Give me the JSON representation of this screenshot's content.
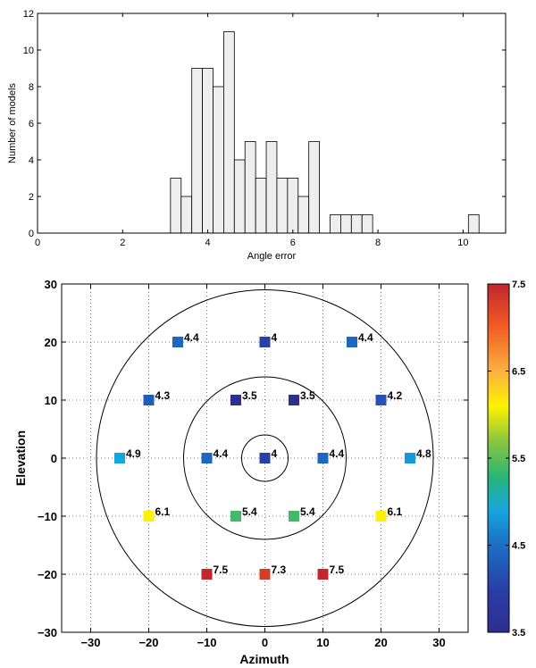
{
  "chart_data": [
    {
      "type": "bar",
      "xlabel": "Angle error",
      "ylabel": "Number of models",
      "xlim": [
        0,
        11
      ],
      "ylim": [
        0,
        12
      ],
      "xticks": [
        "0",
        "2",
        "4",
        "6",
        "8",
        "10"
      ],
      "yticks": [
        "0",
        "2",
        "4",
        "6",
        "8",
        "10",
        "12"
      ],
      "bin_width": 0.25,
      "bar_fill": "#eeeeee",
      "bins": [
        {
          "x": 3.25,
          "count": 3
        },
        {
          "x": 3.5,
          "count": 2
        },
        {
          "x": 3.75,
          "count": 9
        },
        {
          "x": 4.0,
          "count": 9
        },
        {
          "x": 4.25,
          "count": 8
        },
        {
          "x": 4.5,
          "count": 11
        },
        {
          "x": 4.75,
          "count": 4
        },
        {
          "x": 5.0,
          "count": 5
        },
        {
          "x": 5.25,
          "count": 3
        },
        {
          "x": 5.5,
          "count": 5
        },
        {
          "x": 5.75,
          "count": 3
        },
        {
          "x": 6.0,
          "count": 3
        },
        {
          "x": 6.25,
          "count": 2
        },
        {
          "x": 6.5,
          "count": 5
        },
        {
          "x": 7.0,
          "count": 1
        },
        {
          "x": 7.25,
          "count": 1
        },
        {
          "x": 7.5,
          "count": 1
        },
        {
          "x": 7.75,
          "count": 1
        },
        {
          "x": 10.25,
          "count": 1
        }
      ]
    },
    {
      "type": "scatter",
      "xlabel": "Azimuth",
      "ylabel": "Elevation",
      "xlim": [
        -35,
        35
      ],
      "ylim": [
        -30,
        30
      ],
      "xticks": [
        "−30",
        "−20",
        "−10",
        "0",
        "10",
        "20",
        "30"
      ],
      "yticks": [
        "30",
        "20",
        "10",
        "0",
        "−10",
        "−20",
        "−30"
      ],
      "grid": true,
      "grid_style": "dotted",
      "circles": [
        {
          "cx": 0,
          "cy": 0,
          "r": 4
        },
        {
          "cx": 0,
          "cy": 0,
          "r": 14
        },
        {
          "cx": 0,
          "cy": 0,
          "r": 29
        }
      ],
      "points": [
        {
          "x": -15,
          "y": 20,
          "value": 4.4,
          "label": "4.4"
        },
        {
          "x": 0,
          "y": 20,
          "value": 4.0,
          "label": "4"
        },
        {
          "x": 15,
          "y": 20,
          "value": 4.4,
          "label": "4.4"
        },
        {
          "x": -20,
          "y": 10,
          "value": 4.3,
          "label": "4.3"
        },
        {
          "x": -5,
          "y": 10,
          "value": 3.5,
          "label": "3.5"
        },
        {
          "x": 5,
          "y": 10,
          "value": 3.5,
          "label": "3.5"
        },
        {
          "x": 20,
          "y": 10,
          "value": 4.2,
          "label": "4.2"
        },
        {
          "x": -25,
          "y": 0,
          "value": 4.9,
          "label": "4.9"
        },
        {
          "x": -10,
          "y": 0,
          "value": 4.4,
          "label": "4.4"
        },
        {
          "x": 0,
          "y": 0,
          "value": 4.0,
          "label": "4"
        },
        {
          "x": 10,
          "y": 0,
          "value": 4.4,
          "label": "4.4"
        },
        {
          "x": 25,
          "y": 0,
          "value": 4.8,
          "label": "4.8"
        },
        {
          "x": -20,
          "y": -10,
          "value": 6.1,
          "label": "6.1"
        },
        {
          "x": -5,
          "y": -10,
          "value": 5.4,
          "label": "5.4"
        },
        {
          "x": 5,
          "y": -10,
          "value": 5.4,
          "label": "5.4"
        },
        {
          "x": 20,
          "y": -10,
          "value": 6.1,
          "label": "6.1"
        },
        {
          "x": -10,
          "y": -20,
          "value": 7.5,
          "label": "7.5"
        },
        {
          "x": 0,
          "y": -20,
          "value": 7.3,
          "label": "7.3"
        },
        {
          "x": 10,
          "y": -20,
          "value": 7.5,
          "label": "7.5"
        }
      ],
      "colorbar": {
        "min": 3.5,
        "max": 7.5,
        "ticks": [
          "7.5",
          "6.5",
          "5.5",
          "4.5",
          "3.5"
        ],
        "colormap": "jet"
      }
    }
  ]
}
